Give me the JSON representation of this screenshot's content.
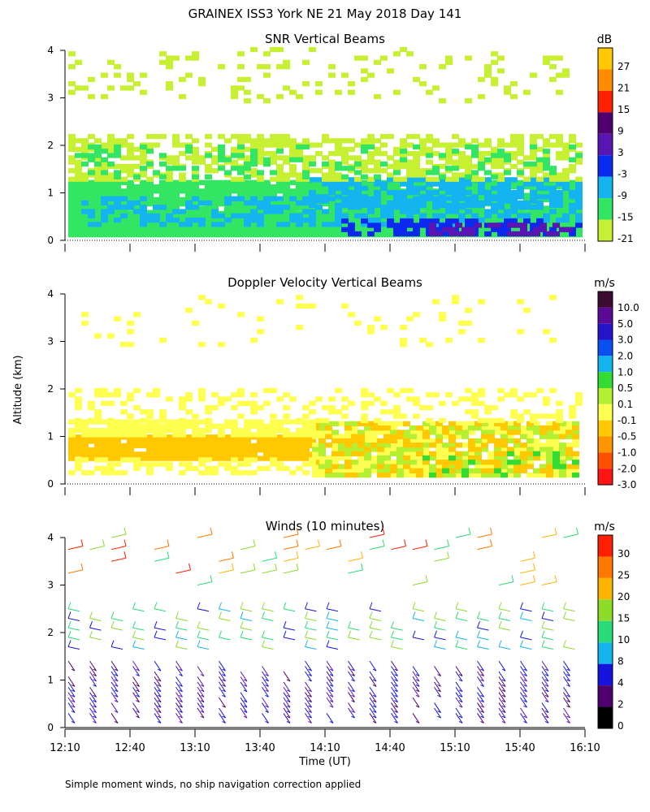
{
  "figure": {
    "title": "GRAINEX ISS3 York NE  21 May 2018 Day 141",
    "ylabel": "Altitude (km)",
    "footnote": "Simple moment winds, no ship navigation correction applied"
  },
  "chart_data": [
    {
      "type": "heatmap",
      "title": "SNR Vertical Beams",
      "xlabel": "",
      "ylabel": "Altitude (km)",
      "ylim": [
        0,
        4
      ],
      "yticks": [
        "0",
        "1",
        "2",
        "3",
        "4"
      ],
      "colorbar_unit": "dB",
      "colorbar_labels": [
        "27",
        "21",
        "15",
        "9",
        "3",
        "-3",
        "-9",
        "-15",
        "-21"
      ],
      "colorbar_colors": [
        "#ffc800",
        "#ff8c00",
        "#ff2000",
        "#50006e",
        "#5a14b4",
        "#0a2af0",
        "#14b4f0",
        "#32e664",
        "#c8f032"
      ]
    },
    {
      "type": "heatmap",
      "title": "Doppler Velocity Vertical Beams",
      "xlabel": "",
      "ylabel": "Altitude (km)",
      "ylim": [
        0,
        4
      ],
      "yticks": [
        "0",
        "1",
        "2",
        "3",
        "4"
      ],
      "colorbar_unit": "m/s",
      "colorbar_labels": [
        "10.0",
        "5.0",
        "3.0",
        "2.0",
        "1.0",
        "0.5",
        "0.1",
        "-0.1",
        "-0.5",
        "-1.0",
        "-2.0",
        "-3.0"
      ],
      "colorbar_colors": [
        "#3c0a32",
        "#5a0a96",
        "#2814c8",
        "#0a50f0",
        "#14b4f0",
        "#32dc32",
        "#b4f032",
        "#ffff50",
        "#ffc800",
        "#ff9600",
        "#ff5000",
        "#ff1414"
      ]
    },
    {
      "type": "scatter",
      "title": "Winds (10 minutes)",
      "xlabel": "Time (UT)",
      "ylabel": "Altitude (km)",
      "ylim": [
        0,
        4
      ],
      "yticks": [
        "0",
        "1",
        "2",
        "3",
        "4"
      ],
      "x_tick_labels": [
        "12:10",
        "12:40",
        "13:10",
        "13:40",
        "14:10",
        "14:40",
        "15:10",
        "15:40",
        "16:10"
      ],
      "colorbar_unit": "m/s",
      "colorbar_labels": [
        "30",
        "25",
        "20",
        "15",
        "10",
        "8",
        "4",
        "2",
        "0"
      ],
      "colorbar_colors": [
        "#ff1e00",
        "#ff7800",
        "#ffb400",
        "#8cdc28",
        "#28dc78",
        "#14b4f0",
        "#1414dc",
        "#50006e",
        "#000000"
      ]
    }
  ]
}
